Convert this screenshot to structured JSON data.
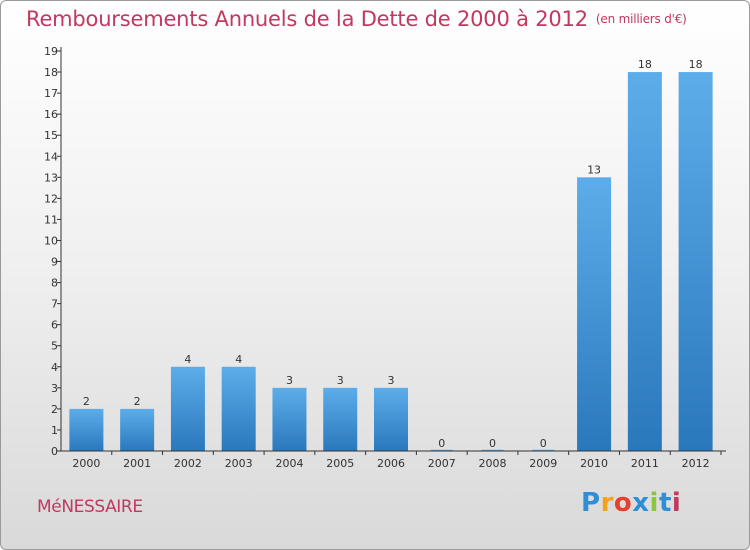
{
  "header": {
    "title": "Remboursements Annuels de la Dette de 2000 à 2012",
    "unit": "(en milliers d'€)"
  },
  "footer": {
    "commune": "MéNESSAIRE",
    "logo_text": "Proxiti"
  },
  "colors": {
    "title": "#c2385f",
    "bar_top": "#5dadea",
    "bar_bottom": "#2a78bc",
    "axis": "#333333",
    "logo": [
      "#2e8fd6",
      "#f4a21c",
      "#e8402e",
      "#2e8fd6",
      "#8cc63f",
      "#2e8fd6",
      "#c2385f"
    ]
  },
  "chart_data": {
    "type": "bar",
    "title": "Remboursements Annuels de la Dette de 2000 à 2012",
    "subtitle": "(en milliers d'€)",
    "categories": [
      "2000",
      "2001",
      "2002",
      "2003",
      "2004",
      "2005",
      "2006",
      "2007",
      "2008",
      "2009",
      "2010",
      "2011",
      "2012"
    ],
    "values": [
      2,
      2,
      4,
      4,
      3,
      3,
      3,
      0,
      0,
      0,
      13,
      18,
      18
    ],
    "data_labels": [
      "2",
      "2",
      "4",
      "4",
      "3",
      "3",
      "3",
      "0",
      "0",
      "0",
      "13",
      "18",
      "18"
    ],
    "ylim": [
      0,
      19
    ],
    "yticks": [
      "0",
      "1",
      "2",
      "3",
      "4",
      "5",
      "6",
      "7",
      "8",
      "9",
      "10",
      "11",
      "12",
      "13",
      "14",
      "15",
      "16",
      "17",
      "18",
      "19"
    ],
    "xlabel": "",
    "ylabel": "",
    "grid": false,
    "legend": "none"
  }
}
